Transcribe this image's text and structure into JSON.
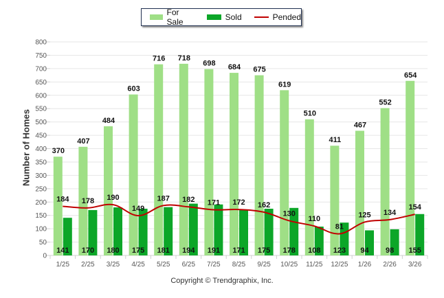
{
  "chart_data": {
    "type": "bar",
    "title": "",
    "xlabel": "",
    "ylabel": "Number of Homes",
    "ylim": [
      0,
      800
    ],
    "ytick_step": 50,
    "grid": true,
    "legend_position": "top-center",
    "categories": [
      "1/25",
      "2/25",
      "3/25",
      "4/25",
      "5/25",
      "6/25",
      "7/25",
      "8/25",
      "9/25",
      "10/25",
      "11/25",
      "12/25",
      "1/26",
      "2/26",
      "3/26"
    ],
    "series": [
      {
        "name": "For Sale",
        "type": "bar",
        "color": "#9fdf86",
        "values": [
          370,
          407,
          484,
          603,
          716,
          718,
          698,
          684,
          675,
          619,
          510,
          411,
          467,
          552,
          654
        ]
      },
      {
        "name": "Sold",
        "type": "bar",
        "color": "#0ca628",
        "values": [
          141,
          170,
          180,
          175,
          181,
          194,
          191,
          171,
          175,
          178,
          108,
          123,
          94,
          98,
          155
        ]
      },
      {
        "name": "Pended",
        "type": "line",
        "color": "#c00000",
        "values": [
          184,
          178,
          190,
          149,
          187,
          182,
          171,
          172,
          162,
          130,
          110,
          81,
          125,
          134,
          154
        ]
      }
    ],
    "footer": "Copyright © Trendgraphix, Inc."
  }
}
